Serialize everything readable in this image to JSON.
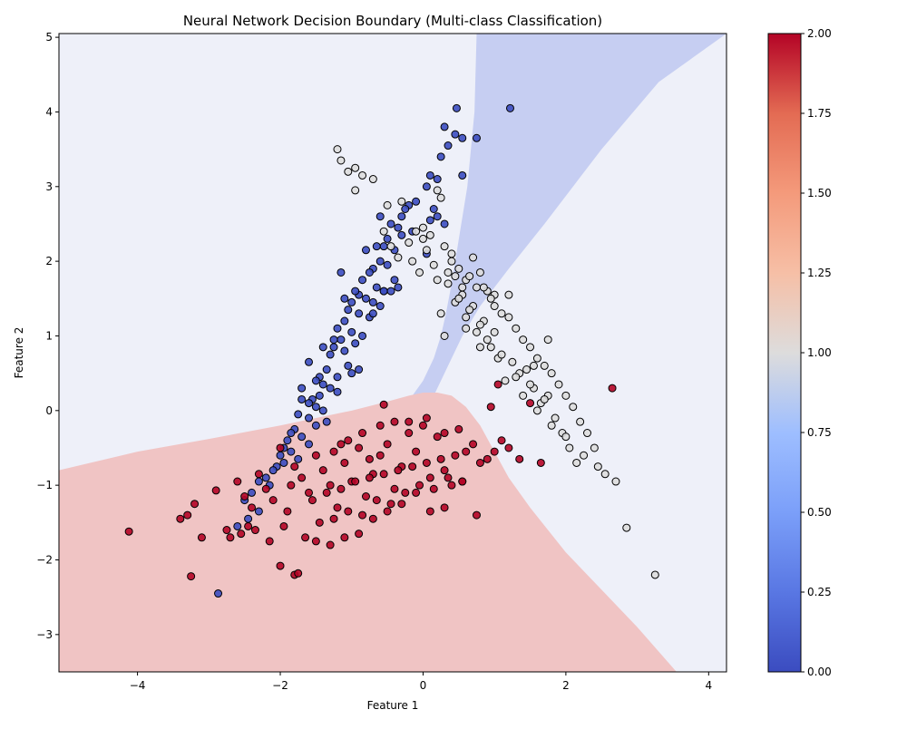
{
  "chart_data": {
    "type": "scatter",
    "title": "Neural Network Decision Boundary (Multi-class Classification)",
    "xlabel": "Feature 1",
    "ylabel": "Feature 2",
    "xlim": [
      -5.1,
      4.25
    ],
    "ylim": [
      -3.5,
      5.05
    ],
    "x_ticks": [
      -4,
      -2,
      0,
      2,
      4
    ],
    "y_ticks": [
      -3,
      -2,
      -1,
      0,
      1,
      2,
      3,
      4,
      5
    ],
    "colormap": "coolwarm",
    "colorbar": {
      "range": [
        0,
        2
      ],
      "ticks": [
        "0.00",
        "0.25",
        "0.50",
        "0.75",
        "1.00",
        "1.25",
        "1.50",
        "1.75",
        "2.00"
      ]
    },
    "class_colors": {
      "0": "#3b4cc0",
      "1": "#dddddd",
      "2": "#b40426"
    },
    "region_colors": {
      "0": "#c6cef2",
      "1": "#eef0f9",
      "2": "#f0c4c4"
    },
    "decision_regions": {
      "class0_boundary_left": [
        [
          5.05,
          0.75
        ],
        [
          4.0,
          0.72
        ],
        [
          3.0,
          0.62
        ],
        [
          2.0,
          0.45
        ],
        [
          1.6,
          0.38
        ],
        [
          1.3,
          0.32
        ],
        [
          1.0,
          0.25
        ],
        [
          0.7,
          0.15
        ],
        [
          0.4,
          0.0
        ],
        [
          0.2,
          -0.15
        ],
        [
          0.0,
          -0.3
        ],
        [
          -0.15,
          -0.45
        ],
        [
          -0.3,
          -0.58
        ],
        [
          -0.45,
          -0.68
        ],
        [
          -0.6,
          -0.75
        ],
        [
          -0.8,
          -0.8
        ]
      ],
      "class0_boundary_right": [
        [
          5.05,
          4.25
        ],
        [
          4.4,
          3.3
        ],
        [
          3.5,
          2.5
        ],
        [
          2.5,
          1.7
        ],
        [
          1.9,
          1.2
        ],
        [
          1.4,
          0.8
        ],
        [
          1.0,
          0.55
        ],
        [
          0.6,
          0.35
        ],
        [
          0.2,
          0.15
        ]
      ],
      "class2_boundary": [
        [
          -5.1,
          -0.8
        ],
        [
          -4.0,
          -0.55
        ],
        [
          -3.0,
          -0.38
        ],
        [
          -2.0,
          -0.2
        ],
        [
          -1.0,
          0.0
        ],
        [
          -0.5,
          0.12
        ],
        [
          -0.2,
          0.2
        ],
        [
          0.0,
          0.24
        ],
        [
          0.2,
          0.24
        ],
        [
          0.4,
          0.2
        ],
        [
          0.6,
          0.05
        ],
        [
          0.8,
          -0.2
        ],
        [
          1.0,
          -0.55
        ],
        [
          1.2,
          -0.9
        ],
        [
          1.5,
          -1.3
        ],
        [
          2.0,
          -1.9
        ],
        [
          2.5,
          -2.4
        ],
        [
          3.0,
          -2.9
        ],
        [
          3.55,
          -3.5
        ]
      ]
    },
    "series": [
      {
        "class": 0,
        "x": [
          1.22,
          0.47,
          0.1,
          0.3,
          0.45,
          0.55,
          0.2,
          0.75,
          0.05,
          0.55,
          0.35,
          0.25,
          0.15,
          0.1,
          0.2,
          0.3,
          -0.1,
          -0.2,
          -0.3,
          -0.35,
          -0.5,
          -0.45,
          -0.55,
          -0.4,
          -0.3,
          -0.6,
          -0.7,
          -0.75,
          -0.5,
          -0.4,
          -0.55,
          -0.65,
          -0.85,
          -0.9,
          -0.8,
          -0.7,
          -0.6,
          -0.95,
          -1.0,
          -0.9,
          -0.75,
          -1.05,
          -1.1,
          -1.2,
          -1.0,
          -0.85,
          -0.95,
          -1.15,
          -1.25,
          -1.3,
          -1.1,
          -1.05,
          -0.9,
          -1.0,
          -1.2,
          -1.35,
          -1.45,
          -1.5,
          -1.4,
          -1.3,
          -1.2,
          -1.45,
          -1.55,
          -1.6,
          -1.5,
          -1.4,
          -1.7,
          -1.75,
          -1.6,
          -1.5,
          -1.35,
          -1.8,
          -1.85,
          -1.9,
          -1.7,
          -1.6,
          -1.95,
          -2.0,
          -1.85,
          -1.75,
          -2.05,
          -2.1,
          -1.95,
          -2.2,
          -2.3,
          -2.15,
          -2.4,
          -2.5,
          -2.6,
          -2.45,
          -2.87,
          -0.6,
          -0.55,
          -1.1,
          -0.25,
          -0.15,
          0.05,
          -0.65,
          -0.8,
          -1.15,
          -1.25,
          -1.4,
          -1.6,
          -1.7,
          -2.3,
          -0.7,
          -0.35,
          -0.45
        ],
        "y": [
          4.05,
          4.05,
          3.15,
          3.8,
          3.7,
          3.65,
          3.1,
          3.65,
          3.0,
          3.15,
          3.55,
          3.4,
          2.7,
          2.55,
          2.6,
          2.5,
          2.8,
          2.75,
          2.6,
          2.45,
          2.3,
          2.5,
          2.2,
          2.15,
          2.35,
          2.0,
          1.9,
          1.85,
          1.95,
          1.75,
          1.6,
          1.65,
          1.75,
          1.55,
          1.5,
          1.45,
          1.4,
          1.6,
          1.45,
          1.3,
          1.25,
          1.35,
          1.2,
          1.1,
          1.05,
          1.0,
          0.9,
          0.95,
          0.85,
          0.75,
          0.8,
          0.6,
          0.55,
          0.5,
          0.45,
          0.55,
          0.45,
          0.4,
          0.35,
          0.3,
          0.25,
          0.2,
          0.15,
          0.1,
          0.05,
          0.0,
          0.15,
          -0.05,
          -0.1,
          -0.2,
          -0.15,
          -0.25,
          -0.3,
          -0.4,
          -0.35,
          -0.45,
          -0.5,
          -0.6,
          -0.55,
          -0.65,
          -0.75,
          -0.8,
          -0.7,
          -0.9,
          -0.95,
          -1.0,
          -1.1,
          -1.2,
          -1.55,
          -1.45,
          -2.45,
          2.6,
          1.6,
          1.5,
          2.7,
          2.4,
          2.1,
          2.2,
          2.15,
          1.85,
          0.95,
          0.85,
          0.65,
          0.3,
          -1.35,
          1.3,
          1.65,
          1.6
        ]
      },
      {
        "class": 1,
        "x": [
          -1.2,
          -1.15,
          -1.05,
          -0.95,
          -0.85,
          -0.95,
          -0.7,
          -0.5,
          -0.3,
          0.0,
          0.2,
          0.25,
          0.1,
          0.3,
          0.15,
          0.35,
          0.4,
          0.5,
          0.6,
          0.7,
          0.8,
          0.9,
          1.0,
          1.1,
          1.2,
          1.3,
          1.4,
          1.5,
          1.6,
          1.7,
          1.8,
          1.9,
          2.0,
          2.1,
          2.2,
          2.3,
          2.4,
          2.55,
          2.7,
          1.0,
          0.85,
          0.7,
          0.55,
          0.45,
          0.35,
          0.25,
          0.6,
          0.75,
          0.95,
          1.05,
          1.25,
          1.35,
          1.55,
          1.65,
          1.85,
          1.95,
          2.05,
          2.15,
          1.15,
          1.45,
          1.75,
          0.5,
          0.65,
          0.8,
          0.9,
          1.1,
          1.3,
          1.5,
          1.7,
          1.2,
          1.0,
          0.85,
          0.3,
          0.2,
          0.4,
          0.55,
          0.0,
          -0.1,
          -0.2,
          -0.15,
          -0.05,
          0.05,
          2.85,
          3.25,
          1.4,
          1.6,
          1.8,
          2.0,
          2.25,
          2.45,
          1.55,
          1.75,
          0.65,
          0.75,
          0.95,
          0.45,
          0.6,
          0.8,
          -0.35,
          -0.45,
          -0.55
        ],
        "y": [
          3.5,
          3.35,
          3.2,
          3.25,
          3.15,
          2.95,
          3.1,
          2.75,
          2.8,
          2.45,
          2.95,
          2.85,
          2.35,
          2.2,
          1.95,
          1.85,
          2.1,
          1.9,
          1.75,
          2.05,
          1.85,
          1.6,
          1.55,
          1.3,
          1.25,
          1.1,
          0.95,
          0.85,
          0.7,
          0.6,
          0.5,
          0.35,
          0.2,
          0.05,
          -0.15,
          -0.3,
          -0.5,
          -0.85,
          -0.95,
          1.05,
          1.2,
          1.4,
          1.55,
          1.45,
          1.7,
          1.3,
          1.25,
          1.05,
          0.85,
          0.7,
          0.65,
          0.5,
          0.3,
          0.1,
          -0.1,
          -0.3,
          -0.5,
          -0.7,
          0.4,
          0.55,
          0.2,
          1.5,
          1.35,
          1.15,
          0.95,
          0.75,
          0.45,
          0.35,
          0.15,
          1.55,
          1.4,
          1.65,
          1.0,
          1.75,
          2.0,
          1.65,
          2.3,
          2.4,
          2.25,
          2.0,
          1.85,
          2.15,
          -1.57,
          -2.2,
          0.2,
          0.0,
          -0.2,
          -0.35,
          -0.6,
          -0.75,
          0.6,
          0.95,
          1.8,
          1.65,
          1.5,
          1.8,
          1.1,
          0.85,
          2.05,
          2.2,
          2.4
        ]
      },
      {
        "class": 2,
        "x": [
          -4.12,
          -3.25,
          -3.4,
          -3.3,
          -3.2,
          -3.1,
          -2.9,
          -2.75,
          -2.6,
          -2.5,
          -2.4,
          -2.3,
          -2.2,
          -2.1,
          -2.0,
          -1.9,
          -1.8,
          -1.7,
          -1.6,
          -1.5,
          -1.4,
          -1.3,
          -1.2,
          -1.1,
          -1.0,
          -0.9,
          -0.8,
          -0.7,
          -0.6,
          -0.5,
          -0.4,
          -0.3,
          -0.2,
          -0.1,
          0.0,
          0.1,
          0.2,
          0.3,
          0.4,
          0.5,
          0.6,
          0.7,
          0.8,
          0.9,
          1.0,
          1.1,
          1.2,
          1.35,
          1.5,
          1.65,
          2.65,
          1.05,
          0.95,
          -2.0,
          -1.8,
          -1.75,
          -1.5,
          -1.3,
          -1.1,
          -0.9,
          -0.7,
          -0.5,
          -0.3,
          -0.1,
          0.1,
          0.3,
          -2.35,
          -2.15,
          -1.95,
          -1.65,
          -1.45,
          -1.25,
          -1.05,
          -0.85,
          -0.65,
          -0.45,
          -0.25,
          -0.05,
          0.15,
          0.35,
          0.55,
          -1.55,
          -1.35,
          -1.15,
          -0.95,
          -0.75,
          -0.55,
          -0.35,
          -0.15,
          0.05,
          0.25,
          0.45,
          -2.7,
          -2.55,
          -2.45,
          -1.85,
          -1.25,
          -1.05,
          -0.85,
          -0.6,
          -0.4,
          0.05,
          0.3,
          -0.55,
          -1.15,
          -0.75,
          -0.2,
          0.55,
          0.75
        ],
        "y": [
          -1.62,
          -2.22,
          -1.45,
          -1.4,
          -1.25,
          -1.7,
          -1.07,
          -1.6,
          -0.95,
          -1.15,
          -1.3,
          -0.85,
          -1.05,
          -1.2,
          -0.5,
          -1.35,
          -0.75,
          -0.9,
          -1.1,
          -0.6,
          -0.8,
          -1.0,
          -1.3,
          -0.7,
          -0.95,
          -0.5,
          -1.15,
          -0.85,
          -0.6,
          -0.45,
          -1.05,
          -0.75,
          -0.3,
          -0.55,
          -0.2,
          -0.9,
          -0.35,
          -0.8,
          -1.0,
          -0.25,
          -0.55,
          -0.45,
          -0.7,
          -0.65,
          -0.55,
          -0.4,
          -0.5,
          -0.65,
          0.1,
          -0.7,
          0.3,
          0.35,
          0.05,
          -2.08,
          -2.2,
          -2.18,
          -1.75,
          -1.8,
          -1.7,
          -1.65,
          -1.45,
          -1.35,
          -1.25,
          -1.1,
          -1.35,
          -1.3,
          -1.6,
          -1.75,
          -1.55,
          -1.7,
          -1.5,
          -1.45,
          -1.35,
          -1.4,
          -1.2,
          -1.25,
          -1.1,
          -1.0,
          -1.05,
          -0.9,
          -0.95,
          -1.2,
          -1.1,
          -1.05,
          -0.95,
          -0.9,
          -0.85,
          -0.8,
          -0.75,
          -0.7,
          -0.65,
          -0.6,
          -1.7,
          -1.65,
          -1.55,
          -1.0,
          -0.55,
          -0.4,
          -0.3,
          -0.2,
          -0.15,
          -0.1,
          -0.3,
          0.08,
          -0.45,
          -0.65,
          -0.15,
          -0.95,
          -1.4
        ]
      }
    ]
  }
}
